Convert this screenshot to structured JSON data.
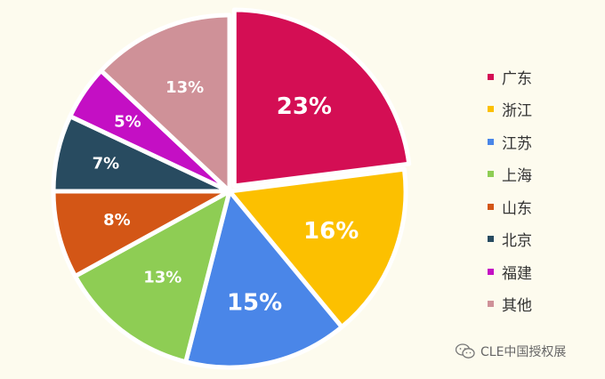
{
  "chart_data": {
    "type": "pie",
    "categories": [
      "广东",
      "浙江",
      "江苏",
      "上海",
      "山东",
      "北京",
      "福建",
      "其他"
    ],
    "values": [
      23,
      16,
      15,
      13,
      8,
      7,
      5,
      13
    ],
    "labels": [
      "23%",
      "16%",
      "15%",
      "13%",
      "8%",
      "7%",
      "5%",
      "13%"
    ],
    "colors": [
      "#d40e54",
      "#fcc000",
      "#4a86e8",
      "#8ecd54",
      "#d35616",
      "#284b60",
      "#c40fc4",
      "#cf9198"
    ],
    "legend_position": "right",
    "start": "top",
    "direction": "clockwise"
  },
  "watermark": {
    "text": "CLE中国授权展",
    "icon": "wechat-icon"
  }
}
